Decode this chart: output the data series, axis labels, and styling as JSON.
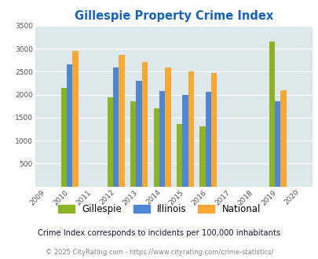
{
  "title": "Gillespie Property Crime Index",
  "all_years": [
    "2009",
    "2010",
    "2011",
    "2012",
    "2013",
    "2014",
    "2015",
    "2016",
    "2017",
    "2018",
    "2019",
    "2020"
  ],
  "bar_years_idx": [
    1,
    3,
    4,
    5,
    6,
    7,
    10
  ],
  "gillespie_vals": [
    2150,
    1950,
    1850,
    1700,
    1370,
    1310,
    3150
  ],
  "illinois_vals": [
    2670,
    2600,
    2300,
    2080,
    2000,
    2060,
    1850
  ],
  "national_vals": [
    2950,
    2860,
    2720,
    2600,
    2500,
    2480,
    2100
  ],
  "gillespie_color": "#8ab425",
  "illinois_color": "#4e86d4",
  "national_color": "#f5a833",
  "bg_color": "#dce8ec",
  "ylim": [
    0,
    3500
  ],
  "yticks": [
    0,
    500,
    1000,
    1500,
    2000,
    2500,
    3000,
    3500
  ],
  "title_color": "#1464bc",
  "subtitle": "Crime Index corresponds to incidents per 100,000 inhabitants",
  "copyright": "© 2025 CityRating.com - https://www.cityrating.com/crime-statistics/",
  "legend_labels": [
    "Gillespie",
    "Illinois",
    "National"
  ]
}
